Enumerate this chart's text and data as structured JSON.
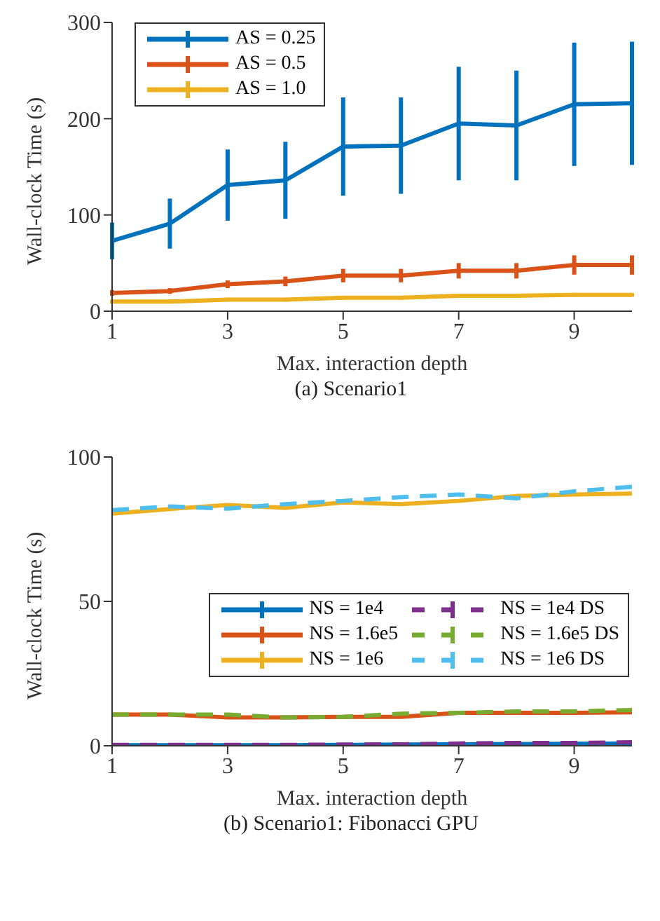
{
  "chart_data": [
    {
      "type": "line",
      "title": "(a) Scenario1",
      "xlabel": "Max. interaction depth",
      "ylabel": "Wall-clock Time (s)",
      "x": [
        1,
        2,
        3,
        4,
        5,
        6,
        7,
        8,
        9,
        10
      ],
      "xlim": [
        1,
        10
      ],
      "xticks": [
        1,
        3,
        5,
        7,
        9
      ],
      "ylim": [
        0,
        300
      ],
      "yticks": [
        0,
        100,
        200,
        300
      ],
      "legend": "top left",
      "marker": "none",
      "line_style": "solid",
      "series": [
        {
          "name": "AS = 0.25",
          "color": "#0072bd",
          "values": [
            73,
            91,
            131,
            136,
            171,
            172,
            195,
            193,
            215,
            216
          ],
          "errors": [
            19,
            26,
            37,
            40,
            51,
            50,
            59,
            57,
            64,
            64
          ]
        },
        {
          "name": "AS = 0.5",
          "color": "#d95319",
          "values": [
            19,
            21,
            28,
            31,
            37,
            37,
            42,
            42,
            48,
            48
          ],
          "errors": [
            3,
            3,
            4,
            5,
            7,
            7,
            8,
            8,
            10,
            10
          ]
        },
        {
          "name": "AS = 1.0",
          "color": "#edb120",
          "values": [
            10,
            10,
            12,
            12,
            14,
            14,
            16,
            16,
            17,
            17
          ],
          "errors": [
            2,
            2,
            2,
            2,
            2,
            2,
            2,
            2,
            2,
            2
          ]
        }
      ]
    },
    {
      "type": "line",
      "title": "(b) Scenario1: Fibonacci GPU",
      "xlabel": "Max. interaction depth",
      "ylabel": "Wall-clock Time (s)",
      "x": [
        1,
        2,
        3,
        4,
        5,
        6,
        7,
        8,
        9,
        10
      ],
      "xlim": [
        1,
        10
      ],
      "xticks": [
        1,
        3,
        5,
        7,
        9
      ],
      "ylim": [
        0,
        100
      ],
      "yticks": [
        0,
        50,
        100
      ],
      "legend": "right",
      "marker": "none",
      "series": [
        {
          "name": "NS = 1e4",
          "color": "#0072bd",
          "line_style": "solid",
          "values": [
            0.2,
            0.2,
            0.2,
            0.2,
            0.3,
            0.4,
            0.5,
            0.6,
            0.7,
            0.8
          ]
        },
        {
          "name": "NS = 1.6e5",
          "color": "#d95319",
          "line_style": "solid",
          "values": [
            10.8,
            10.8,
            9.8,
            9.8,
            10,
            10,
            11.4,
            11.4,
            11.4,
            11.6
          ]
        },
        {
          "name": "NS = 1e6",
          "color": "#edb120",
          "line_style": "solid",
          "values": [
            80.4,
            82,
            83.4,
            82.4,
            84.3,
            83.7,
            84.8,
            86.5,
            87,
            87.3
          ]
        },
        {
          "name": "NS = 1e4 DS",
          "color": "#7e2f8e",
          "line_style": "dashed",
          "values": [
            0.3,
            0.3,
            0.3,
            0.3,
            0.4,
            0.5,
            0.8,
            1,
            1,
            1.2
          ]
        },
        {
          "name": "NS = 1.6e5 DS",
          "color": "#77ac30",
          "line_style": "dashed",
          "values": [
            10.8,
            10.8,
            10.8,
            9.8,
            10,
            11.1,
            11.4,
            11.9,
            11.9,
            12.4
          ]
        },
        {
          "name": "NS = 1e6 DS",
          "color": "#4dbeee",
          "line_style": "dashed",
          "values": [
            81.6,
            82.9,
            82.1,
            83.7,
            84.8,
            86.1,
            87,
            85.7,
            88.1,
            89.7
          ]
        }
      ]
    }
  ]
}
